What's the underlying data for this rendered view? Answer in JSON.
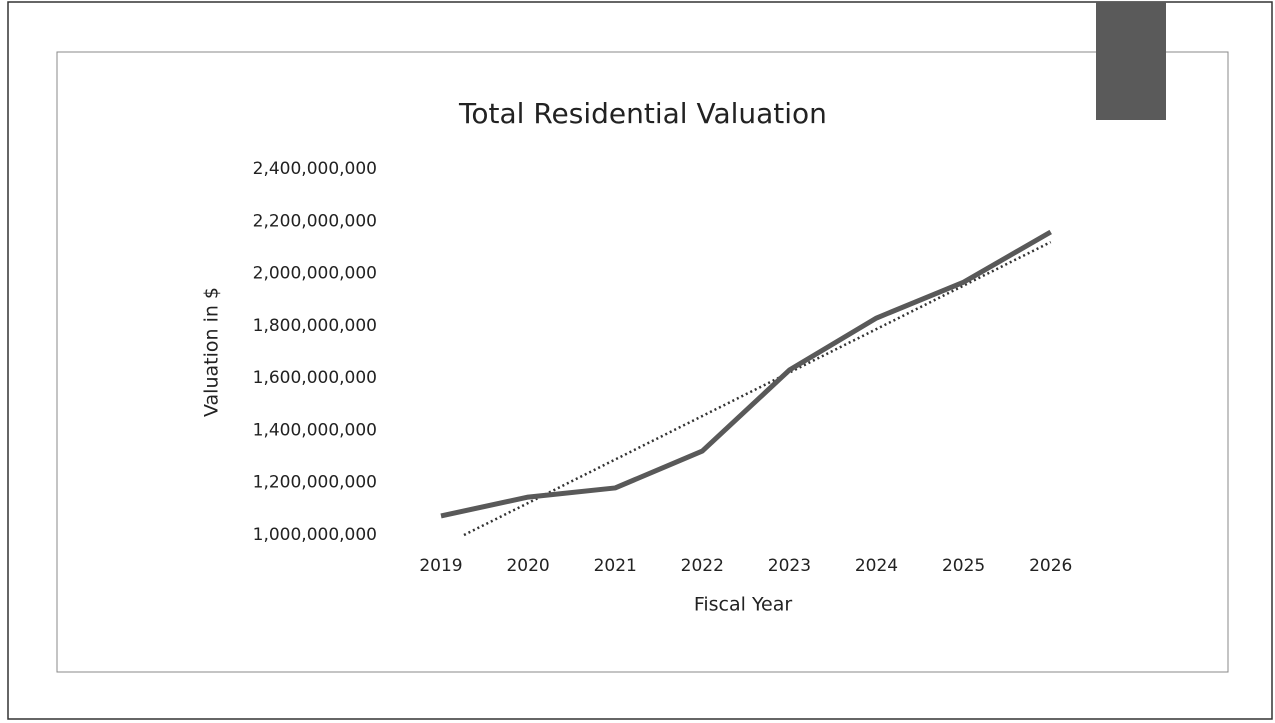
{
  "chart_data": {
    "type": "line",
    "title": "Total Residential Valuation",
    "x_label": "Fiscal Year",
    "y_label": "Valuation in $",
    "categories": [
      "2019",
      "2020",
      "2021",
      "2022",
      "2023",
      "2024",
      "2025",
      "2026"
    ],
    "series": [
      {
        "name": "Total Residential Valuation",
        "color": "#595959",
        "values": [
          1073000000,
          1145000000,
          1180000000,
          1321000000,
          1631000000,
          1830000000,
          1967000000,
          2159000000
        ]
      }
    ],
    "ylim": [
      1000000000,
      2400000000
    ],
    "yticks": [
      {
        "value": 1000000000,
        "label": "1,000,000,000"
      },
      {
        "value": 1200000000,
        "label": "1,200,000,000"
      },
      {
        "value": 1400000000,
        "label": "1,400,000,000"
      },
      {
        "value": 1600000000,
        "label": "1,600,000,000"
      },
      {
        "value": 1800000000,
        "label": "1,800,000,000"
      },
      {
        "value": 2000000000,
        "label": "2,000,000,000"
      },
      {
        "value": 2200000000,
        "label": "2,200,000,000"
      },
      {
        "value": 2400000000,
        "label": "2,400,000,000"
      }
    ],
    "grid": false,
    "trendline": {
      "kind": "linear",
      "color": "#333333"
    }
  }
}
